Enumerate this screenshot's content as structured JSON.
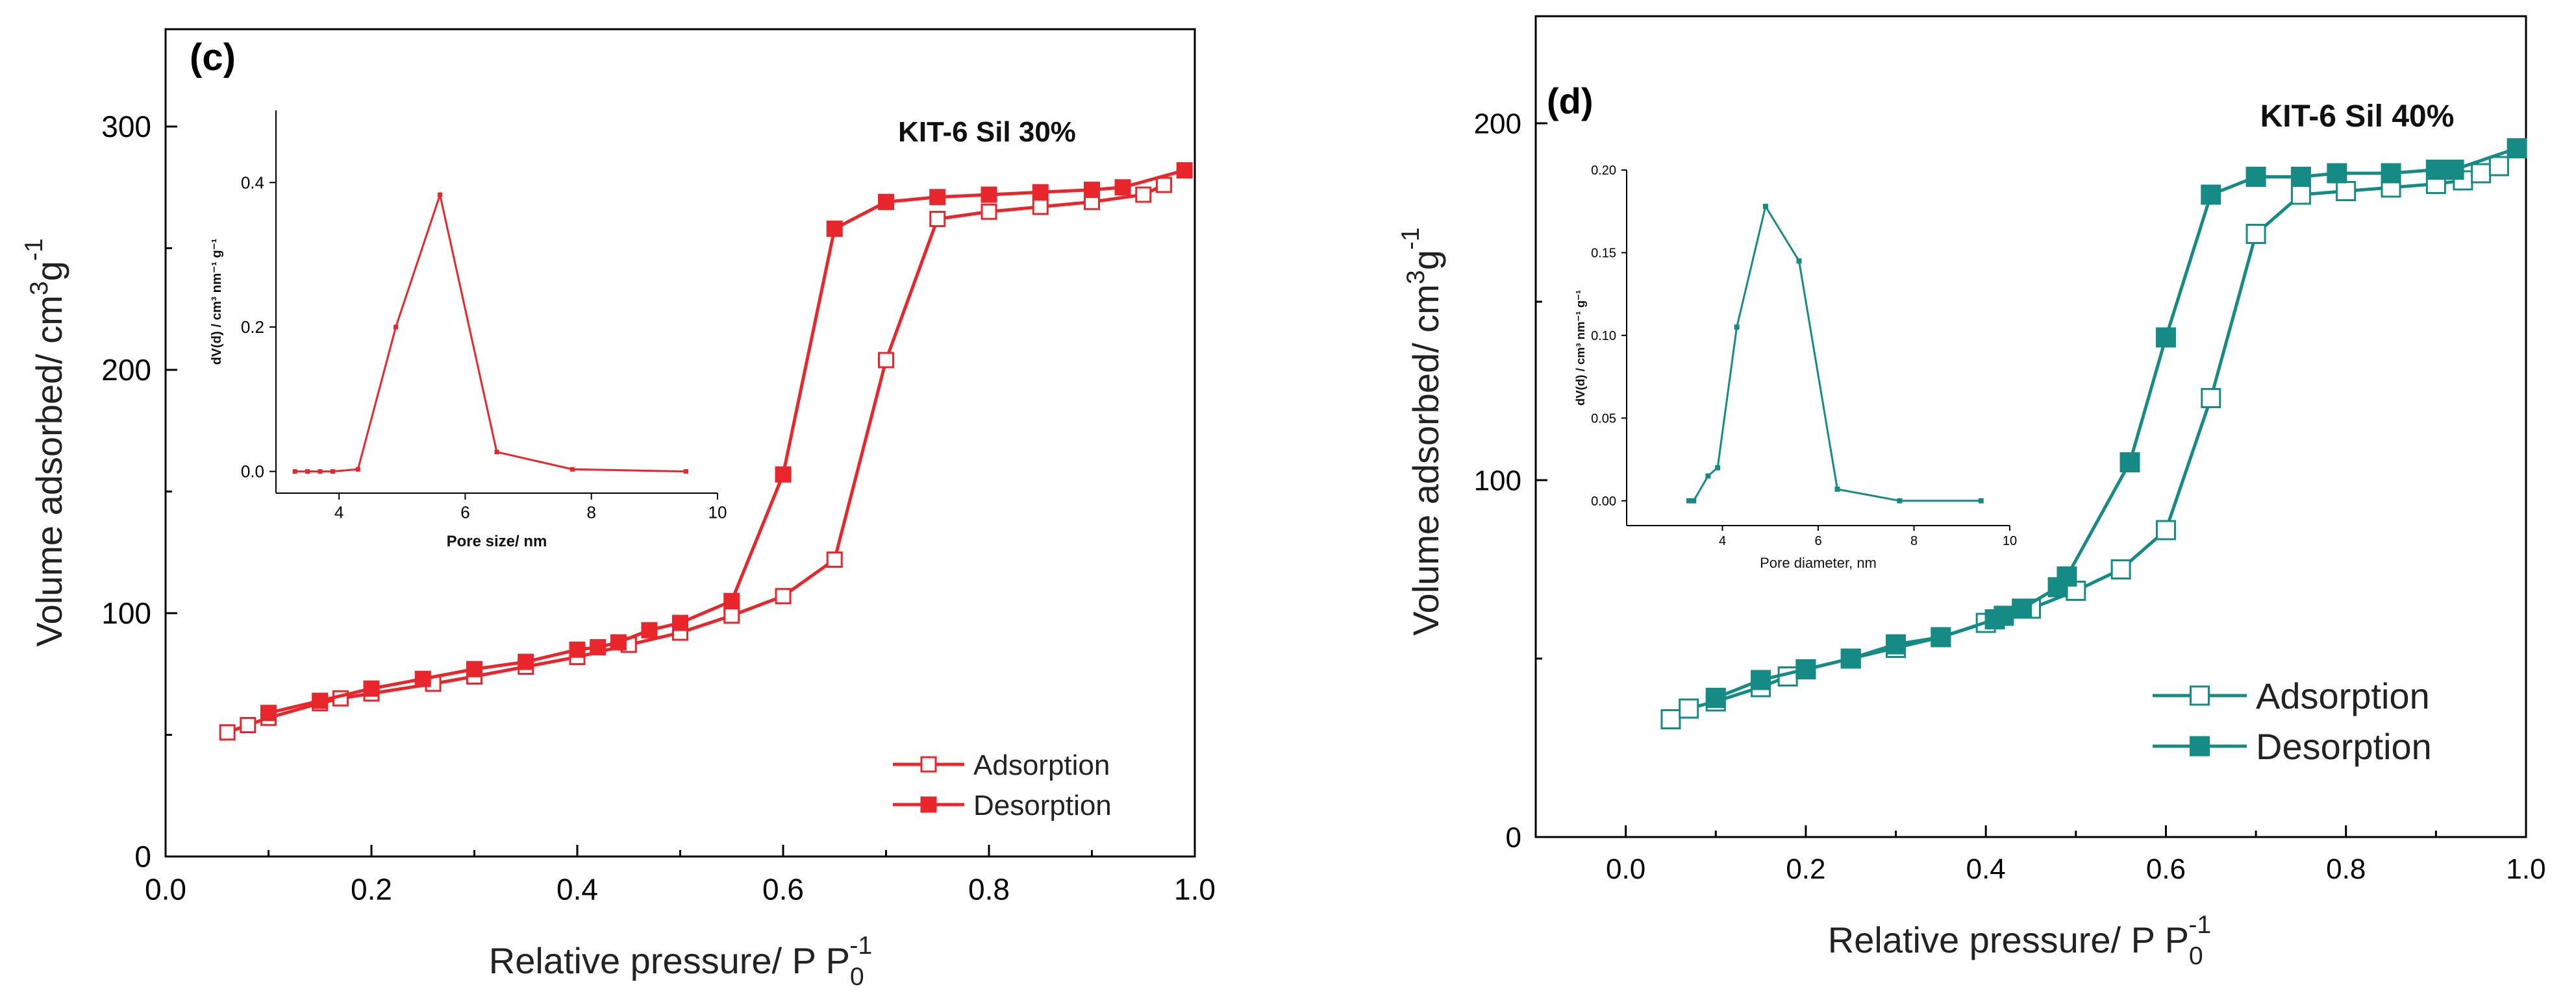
{
  "chart_data": [
    {
      "type": "line",
      "panel": "(c)",
      "title": "KIT-6 Sil 30%",
      "xlabel": "Relative pressure/ P P",
      "xlabel_sub": "0",
      "xlabel_sup": "-1",
      "ylabel": "Volume adsorbed/ cm",
      "ylabel_sup1": "3",
      "ylabel_mid": "g",
      "ylabel_sup2": "-1",
      "xlim": [
        0,
        1
      ],
      "ylim": [
        0,
        340
      ],
      "xticks": [
        "0.0",
        "0.2",
        "0.4",
        "0.6",
        "0.8",
        "1.0"
      ],
      "yticks": [
        "0",
        "100",
        "200",
        "300"
      ],
      "color": "#e8262b",
      "legend_position": "bottom-right",
      "series": [
        {
          "name": "Adsorption",
          "marker": "open-square",
          "x": [
            0.06,
            0.08,
            0.1,
            0.15,
            0.17,
            0.2,
            0.26,
            0.3,
            0.35,
            0.4,
            0.45,
            0.5,
            0.55,
            0.6,
            0.65,
            0.7,
            0.75,
            0.8,
            0.85,
            0.9,
            0.95,
            0.97
          ],
          "y": [
            51,
            54,
            57,
            63,
            65,
            67,
            71,
            74,
            78,
            82,
            87,
            92,
            99,
            107,
            122,
            204,
            262,
            265,
            267,
            269,
            272,
            276
          ]
        },
        {
          "name": "Desorption",
          "marker": "filled-square",
          "x": [
            0.99,
            0.93,
            0.9,
            0.85,
            0.8,
            0.75,
            0.7,
            0.65,
            0.6,
            0.55,
            0.5,
            0.47,
            0.44,
            0.42,
            0.4,
            0.35,
            0.3,
            0.25,
            0.2,
            0.15,
            0.1
          ],
          "y": [
            282,
            275,
            274,
            273,
            272,
            271,
            269,
            258,
            157,
            105,
            96,
            93,
            88,
            86,
            85,
            80,
            77,
            73,
            69,
            64,
            59
          ]
        }
      ],
      "inset": {
        "type": "line",
        "xlabel": "Pore size/ nm",
        "ylabel": "dV(d) / cm³ nm⁻¹ g⁻¹",
        "xlim": [
          3,
          10
        ],
        "ylim": [
          -0.03,
          0.5
        ],
        "xticks": [
          "4",
          "6",
          "8",
          "10"
        ],
        "yticks": [
          "0.0",
          "0.2",
          "0.4"
        ],
        "x": [
          3.3,
          3.5,
          3.7,
          3.9,
          4.3,
          4.9,
          5.6,
          6.5,
          7.7,
          9.5
        ],
        "y": [
          0.0,
          0.0,
          0.0,
          0.0,
          0.003,
          0.2,
          0.383,
          0.027,
          0.003,
          0.0
        ]
      }
    },
    {
      "type": "line",
      "panel": "(d)",
      "title": "KIT-6 Sil 40%",
      "xlabel": "Relative pressure/ P P",
      "xlabel_sub": "0",
      "xlabel_sup": "-1",
      "ylabel": "Volume adsorbed/ cm",
      "ylabel_sup1": "3",
      "ylabel_mid": "g",
      "ylabel_sup2": "-1",
      "xlim": [
        -0.1,
        1
      ],
      "ylim": [
        0,
        230
      ],
      "xticks": [
        "0.0",
        "0.2",
        "0.4",
        "0.6",
        "0.8",
        "1.0"
      ],
      "yticks": [
        "0",
        "100",
        "200"
      ],
      "color": "#168b86",
      "legend_position": "bottom-right",
      "series": [
        {
          "name": "Adsorption",
          "marker": "open-square",
          "x": [
            0.05,
            0.07,
            0.1,
            0.15,
            0.18,
            0.2,
            0.25,
            0.3,
            0.35,
            0.4,
            0.45,
            0.5,
            0.55,
            0.6,
            0.65,
            0.7,
            0.75,
            0.8,
            0.85,
            0.9,
            0.93,
            0.95,
            0.97
          ],
          "y": [
            33,
            36,
            38,
            42,
            45,
            47,
            50,
            53,
            56,
            60,
            64,
            69,
            75,
            86,
            123,
            169,
            180,
            181,
            182,
            183,
            184,
            186,
            188
          ]
        },
        {
          "name": "Desorption",
          "marker": "filled-square",
          "x": [
            0.99,
            0.92,
            0.9,
            0.85,
            0.79,
            0.75,
            0.7,
            0.65,
            0.6,
            0.56,
            0.49,
            0.48,
            0.44,
            0.42,
            0.41,
            0.35,
            0.3,
            0.25,
            0.2,
            0.15,
            0.1
          ],
          "y": [
            193,
            187,
            187,
            186,
            186,
            185,
            185,
            180,
            140,
            105,
            73,
            70,
            64,
            62,
            61,
            56,
            54,
            50,
            47,
            44,
            39
          ]
        }
      ],
      "inset": {
        "type": "line",
        "xlabel": "Pore diameter, nm",
        "ylabel": "dV(d) / cm³ nm⁻¹ g⁻¹",
        "xlim": [
          2,
          10
        ],
        "ylim": [
          -0.015,
          0.2
        ],
        "xticks": [
          "4",
          "6",
          "8",
          "10"
        ],
        "yticks": [
          "0.00",
          "0.05",
          "0.10",
          "0.15",
          "0.20"
        ],
        "x": [
          3.3,
          3.4,
          3.7,
          3.9,
          4.3,
          4.9,
          5.6,
          6.4,
          7.7,
          9.4
        ],
        "y": [
          0.0,
          0.0,
          0.015,
          0.02,
          0.105,
          0.178,
          0.145,
          0.007,
          0.0,
          0.0
        ]
      }
    }
  ]
}
